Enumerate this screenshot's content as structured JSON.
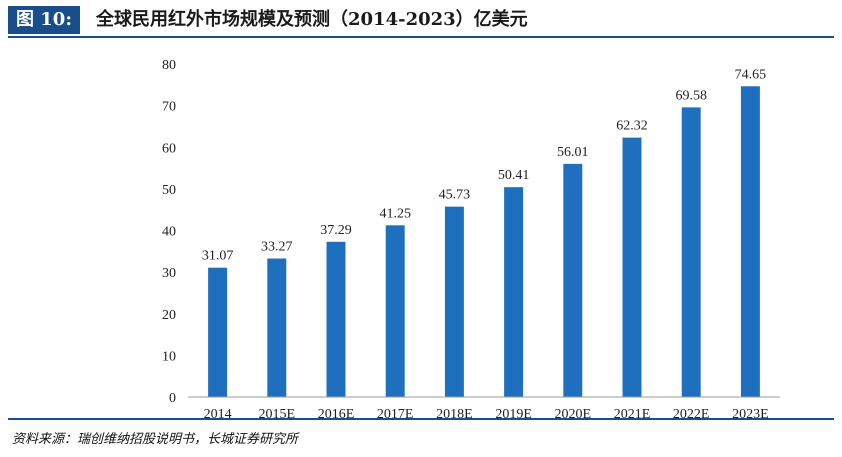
{
  "header": {
    "figure_label": "图 10:",
    "title": "全球民用红外市场规模及预测（2014-2023）亿美元"
  },
  "footer": {
    "source": "资料来源：瑞创维纳招股说明书，长城证券研究所"
  },
  "colors": {
    "bar": "#1f6fbf",
    "accent": "#1a4e8a"
  },
  "chart_data": {
    "type": "bar",
    "categories": [
      "2014",
      "2015E",
      "2016E",
      "2017E",
      "2018E",
      "2019E",
      "2020E",
      "2021E",
      "2022E",
      "2023E"
    ],
    "values": [
      31.07,
      33.27,
      37.29,
      41.25,
      45.73,
      50.41,
      56.01,
      62.32,
      69.58,
      74.65
    ],
    "data_labels": [
      "31.07",
      "33.27",
      "37.29",
      "41.25",
      "45.73",
      "50.41",
      "56.01",
      "62.32",
      "69.58",
      "74.65"
    ],
    "ylim": [
      0,
      80
    ],
    "yticks": [
      0,
      10,
      20,
      30,
      40,
      50,
      60,
      70,
      80
    ],
    "grid": false,
    "legend": "none"
  }
}
